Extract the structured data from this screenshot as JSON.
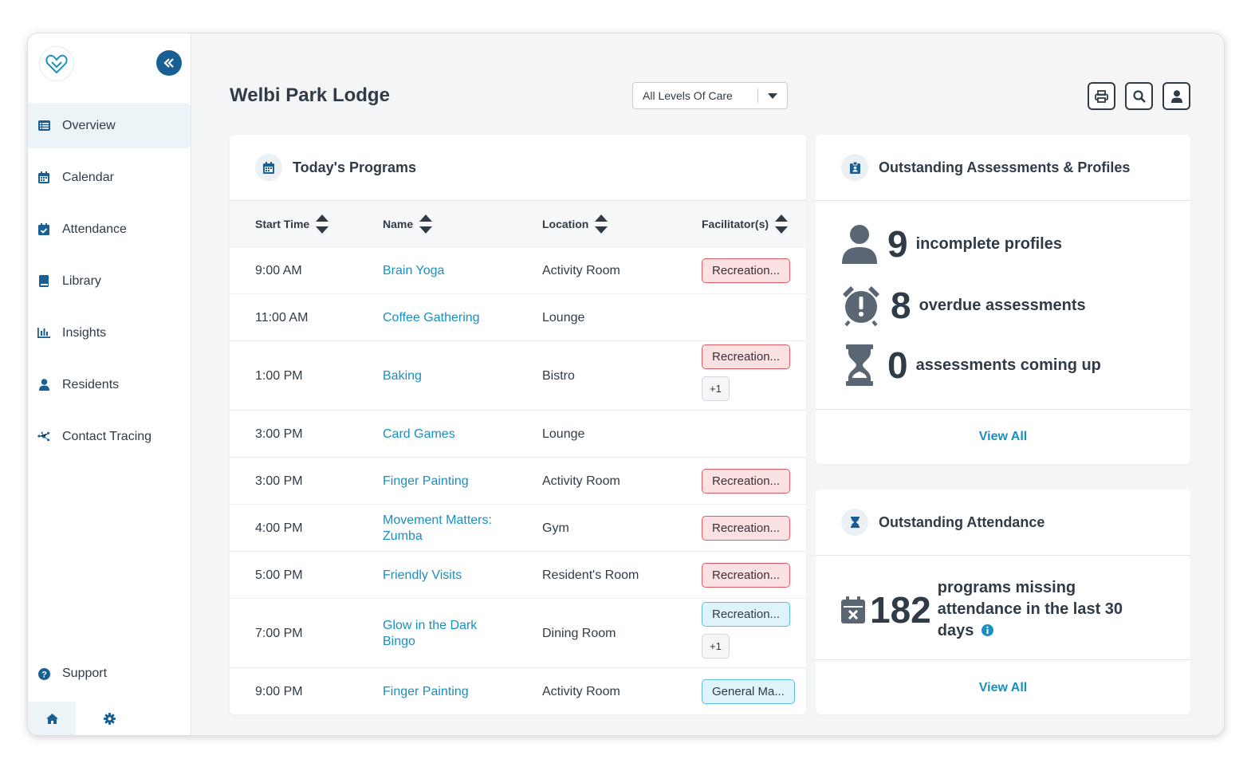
{
  "app": {
    "facility": "Welbi Park Lodge",
    "accent": "#1a5f93",
    "link_color": "#1a8fbf"
  },
  "sidebar": {
    "items": [
      {
        "label": "Overview",
        "icon": "list-icon",
        "active": true
      },
      {
        "label": "Calendar",
        "icon": "calendar-icon"
      },
      {
        "label": "Attendance",
        "icon": "calendar-check-icon"
      },
      {
        "label": "Library",
        "icon": "book-icon"
      },
      {
        "label": "Insights",
        "icon": "bar-chart-icon"
      },
      {
        "label": "Residents",
        "icon": "person-icon"
      },
      {
        "label": "Contact Tracing",
        "icon": "network-icon"
      }
    ],
    "support_label": "Support"
  },
  "header": {
    "care_level": "All Levels Of Care"
  },
  "programs": {
    "title": "Today's Programs",
    "columns": [
      "Start Time",
      "Name",
      "Location",
      "Facilitator(s)"
    ],
    "rows": [
      {
        "time": "9:00 AM",
        "name": "Brain Yoga",
        "location": "Activity Room",
        "facilitator": "Recreation...",
        "badge": "red"
      },
      {
        "time": "11:00 AM",
        "name": "Coffee Gathering",
        "location": "Lounge",
        "facilitator": ""
      },
      {
        "time": "1:00 PM",
        "name": "Baking",
        "location": "Bistro",
        "facilitator": "Recreation...",
        "badge": "red",
        "extra": "+1"
      },
      {
        "time": "3:00 PM",
        "name": "Card Games",
        "location": "Lounge",
        "facilitator": ""
      },
      {
        "time": "3:00 PM",
        "name": "Finger Painting",
        "location": "Activity Room",
        "facilitator": "Recreation...",
        "badge": "red"
      },
      {
        "time": "4:00 PM",
        "name": "Movement Matters: Zumba",
        "location": "Gym",
        "facilitator": "Recreation...",
        "badge": "red"
      },
      {
        "time": "5:00 PM",
        "name": "Friendly Visits",
        "location": "Resident's Room",
        "facilitator": "Recreation...",
        "badge": "red"
      },
      {
        "time": "7:00 PM",
        "name": "Glow in the Dark Bingo",
        "location": "Dining Room",
        "facilitator": "Recreation...",
        "badge": "blue",
        "extra": "+1"
      },
      {
        "time": "9:00 PM",
        "name": "Finger Painting",
        "location": "Activity Room",
        "facilitator": "General Ma...",
        "badge": "blue"
      }
    ]
  },
  "assessments": {
    "title": "Outstanding Assessments & Profiles",
    "stats": [
      {
        "num": "9",
        "label": "incomplete profiles",
        "icon": "person-icon"
      },
      {
        "num": "8",
        "label": "overdue assessments",
        "icon": "alarm-clock-icon"
      },
      {
        "num": "0",
        "label": "assessments coming up",
        "icon": "hourglass-icon"
      }
    ],
    "view_all": "View All"
  },
  "attendance": {
    "title": "Outstanding Attendance",
    "num": "182",
    "label": "programs missing attendance in the last 30 days",
    "view_all": "View All"
  }
}
